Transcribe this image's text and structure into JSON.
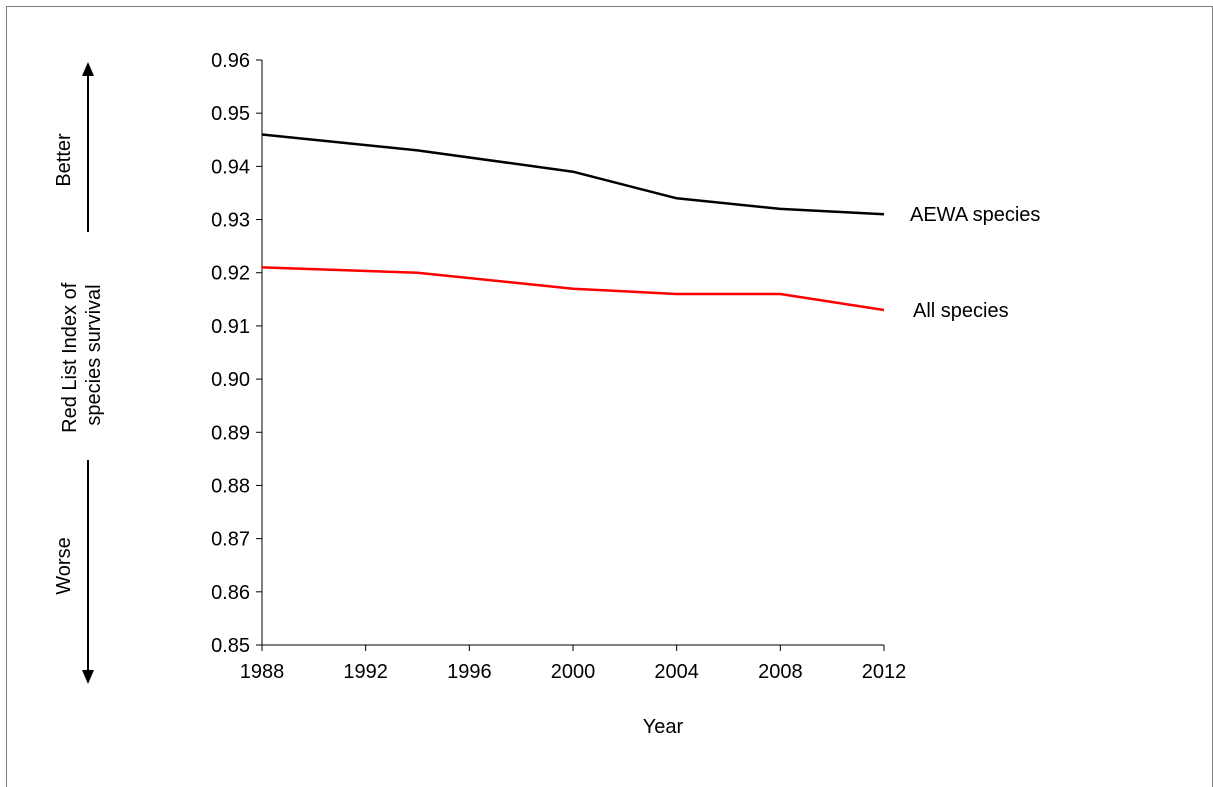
{
  "chart_data": {
    "type": "line",
    "x": [
      1988,
      1994,
      2000,
      2004,
      2008,
      2012
    ],
    "series": [
      {
        "name": "AEWA species",
        "values": [
          0.946,
          0.943,
          0.939,
          0.934,
          0.932,
          0.931
        ],
        "color": "#000000"
      },
      {
        "name": "All species",
        "values": [
          0.921,
          0.92,
          0.917,
          0.916,
          0.916,
          0.913
        ],
        "color": "#ff0000"
      }
    ],
    "xlabel": "Year",
    "ylabel_lines": [
      "Red List Index of",
      "species survival"
    ],
    "xlim": [
      1988,
      2012
    ],
    "ylim": [
      0.85,
      0.96
    ],
    "x_ticks": [
      "1988",
      "1992",
      "1996",
      "2000",
      "2004",
      "2008",
      "2012"
    ],
    "y_ticks": [
      "0.96",
      "0.95",
      "0.94",
      "0.93",
      "0.92",
      "0.91",
      "0.90",
      "0.89",
      "0.88",
      "0.87",
      "0.86",
      "0.85"
    ],
    "direction_labels": {
      "up": "Better",
      "down": "Worse"
    },
    "grid": false,
    "legend": "none (series labelled at line ends)"
  }
}
